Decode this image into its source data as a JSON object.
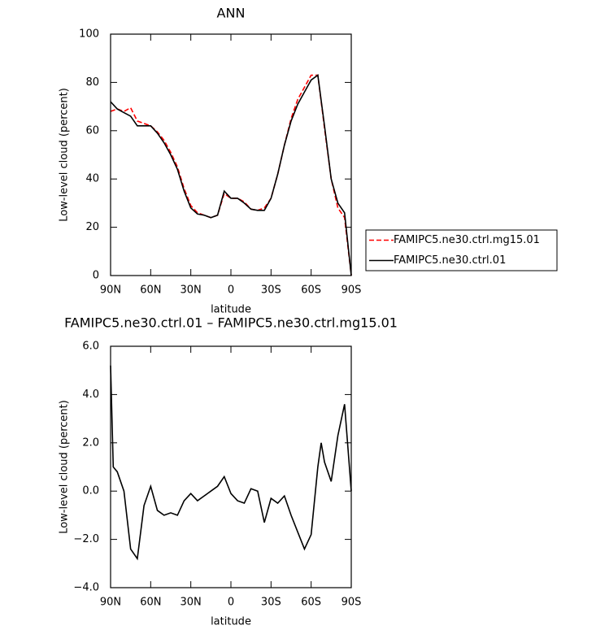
{
  "chart_data": [
    {
      "type": "line",
      "title": "ANN",
      "x_label": "latitude",
      "y_label": "Low-level cloud (percent)",
      "x": [
        90,
        85,
        80,
        75,
        70,
        65,
        60,
        55,
        50,
        45,
        40,
        35,
        30,
        25,
        20,
        15,
        10,
        5,
        0,
        -5,
        -10,
        -15,
        -20,
        -25,
        -30,
        -35,
        -40,
        -45,
        -50,
        -55,
        -60,
        -65,
        -70,
        -75,
        -80,
        -85,
        -90
      ],
      "series": [
        {
          "name": "FAMIPC5.ne30.ctrl.mg15.01",
          "color": "#ff0000",
          "dashed": true,
          "values": [
            68,
            69,
            68,
            69.5,
            64,
            63,
            62,
            59.5,
            56,
            51,
            45,
            36,
            29,
            26,
            25,
            24,
            25,
            34,
            32,
            32,
            30.5,
            27.5,
            27,
            28,
            32,
            42,
            54,
            65,
            73,
            78,
            83,
            83,
            61,
            40,
            28,
            24,
            0
          ]
        },
        {
          "name": "FAMIPC5.ne30.ctrl.01",
          "color": "#000000",
          "dashed": false,
          "values": [
            72,
            69,
            67.5,
            66,
            62,
            62,
            62,
            59,
            55,
            50,
            44,
            35,
            28,
            25.5,
            25,
            24,
            25,
            35,
            32,
            32,
            30,
            27.5,
            27,
            27,
            32,
            42,
            54,
            64,
            71,
            76,
            81,
            83,
            62,
            40,
            30,
            26,
            0
          ]
        }
      ],
      "xlim": [
        90,
        -90
      ],
      "xticks": [
        {
          "value": 90,
          "label": "90N"
        },
        {
          "value": 60,
          "label": "60N"
        },
        {
          "value": 30,
          "label": "30N"
        },
        0,
        {
          "value": -30,
          "label": "30S"
        },
        {
          "value": -60,
          "label": "60S"
        },
        {
          "value": -90,
          "label": "90S"
        }
      ],
      "ylim": [
        0,
        100
      ],
      "yticks": [
        0,
        20,
        40,
        60,
        80,
        100
      ],
      "legend": "right"
    },
    {
      "type": "line",
      "title": "FAMIPC5.ne30.ctrl.01 – FAMIPC5.ne30.ctrl.mg15.01",
      "x_label": "latitude",
      "y_label": "Low-level cloud (percent)",
      "x": [
        90,
        88,
        85,
        80,
        75,
        70,
        65,
        60,
        55,
        50,
        45,
        40,
        35,
        30,
        25,
        20,
        15,
        10,
        5,
        0,
        -5,
        -10,
        -15,
        -20,
        -25,
        -30,
        -35,
        -40,
        -45,
        -50,
        -55,
        -60,
        -65,
        -67.5,
        -70,
        -75,
        -80,
        -85,
        -90
      ],
      "values": [
        5.2,
        1.0,
        0.8,
        0.0,
        -2.4,
        -2.8,
        -0.6,
        0.2,
        -0.8,
        -1.0,
        -0.9,
        -1.0,
        -0.4,
        -0.1,
        -0.4,
        -0.2,
        0.0,
        0.2,
        0.6,
        -0.1,
        -0.4,
        -0.5,
        0.1,
        0.0,
        -1.3,
        -0.3,
        -0.5,
        -0.2,
        -1.0,
        -1.7,
        -2.4,
        -1.8,
        1.0,
        2.0,
        1.2,
        0.4,
        2.3,
        3.6,
        0
      ],
      "color": "#000000",
      "xlim": [
        90,
        -90
      ],
      "xticks": [
        {
          "value": 90,
          "label": "90N"
        },
        {
          "value": 60,
          "label": "60N"
        },
        {
          "value": 30,
          "label": "30N"
        },
        0,
        {
          "value": -30,
          "label": "30S"
        },
        {
          "value": -60,
          "label": "60S"
        },
        {
          "value": -90,
          "label": "90S"
        }
      ],
      "ylim": [
        -4,
        6
      ],
      "yticks": [
        {
          "value": -4,
          "label": "−4.0"
        },
        {
          "value": -2,
          "label": "−2.0"
        },
        {
          "value": 0,
          "label": "0.0"
        },
        {
          "value": 2,
          "label": "2.0"
        },
        {
          "value": 4,
          "label": "4.0"
        },
        {
          "value": 6,
          "label": "6.0"
        }
      ]
    }
  ]
}
